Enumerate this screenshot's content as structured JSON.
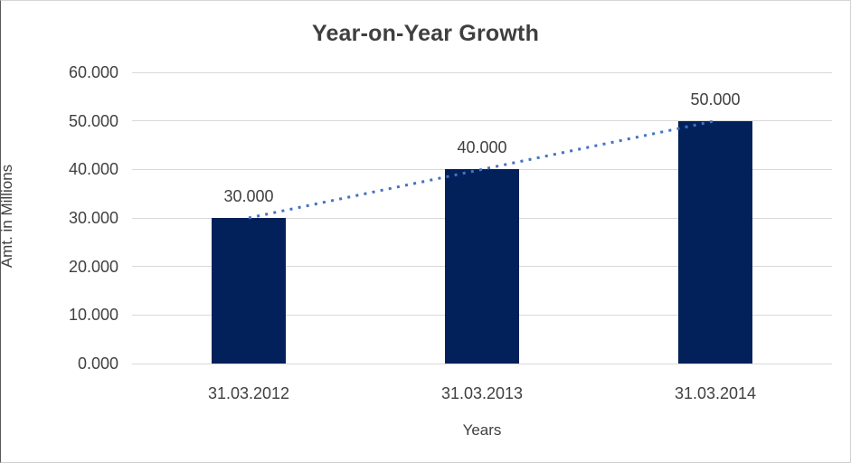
{
  "chart_data": {
    "type": "bar",
    "title": "Year-on-Year Growth",
    "xlabel": "Years",
    "ylabel": "Amt. in Millions",
    "categories": [
      "31.03.2012",
      "31.03.2013",
      "31.03.2014"
    ],
    "values": [
      30000,
      40000,
      50000
    ],
    "data_labels": [
      "30.000",
      "40.000",
      "50.000"
    ],
    "y_ticks": [
      "0.000",
      "10.000",
      "20.000",
      "30.000",
      "40.000",
      "50.000",
      "60.000"
    ],
    "ylim": [
      0,
      60000
    ],
    "grid": "horizontal-only",
    "legend": "none",
    "trendline": {
      "type": "linear",
      "style": "dotted",
      "from_value": 30000,
      "to_value": 50000,
      "color": "#4472c4"
    },
    "colors": {
      "bar": "#02215b",
      "gridline": "#d9d9d9",
      "axis_text": "#404040",
      "title_text": "#3f3f3f"
    }
  }
}
